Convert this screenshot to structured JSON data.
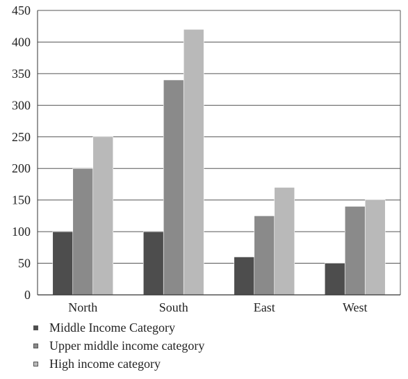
{
  "chart_data": {
    "type": "bar",
    "title": "",
    "xlabel": "",
    "ylabel": "",
    "categories": [
      "North",
      "South",
      "East",
      "West"
    ],
    "series": [
      {
        "name": "Middle Income Category",
        "values": [
          100,
          100,
          60,
          50
        ],
        "color": "#4d4d4d"
      },
      {
        "name": "Upper middle income category",
        "values": [
          200,
          340,
          125,
          140
        ],
        "color": "#8a8a8a"
      },
      {
        "name": "High income category",
        "values": [
          250,
          420,
          170,
          150
        ],
        "color": "#b9b9b9"
      }
    ],
    "ylim": [
      0,
      450
    ],
    "yticks": [
      0,
      50,
      100,
      150,
      200,
      250,
      300,
      350,
      400,
      450
    ],
    "grid": true,
    "legend_position": "bottom-left"
  }
}
